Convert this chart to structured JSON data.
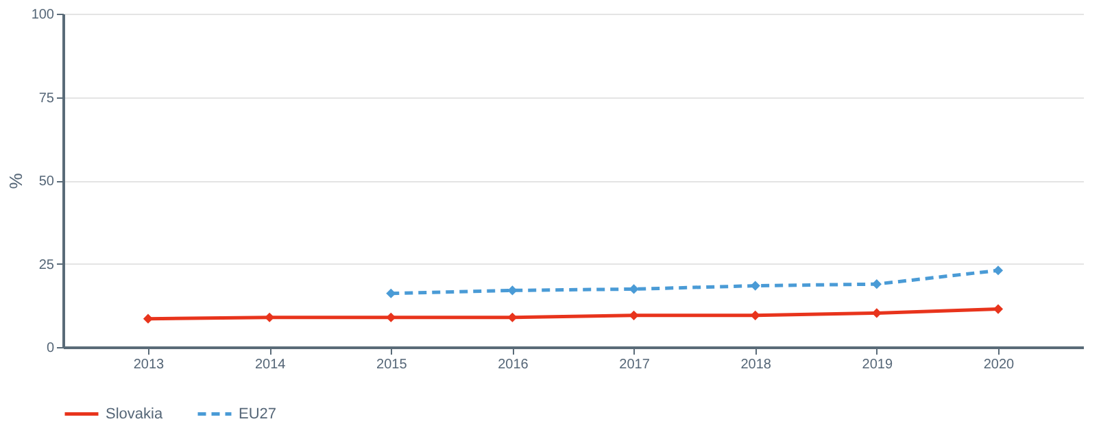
{
  "chart_data": {
    "type": "line",
    "ylabel": "%",
    "categories": [
      "2013",
      "2014",
      "2015",
      "2016",
      "2017",
      "2018",
      "2019",
      "2020"
    ],
    "series": [
      {
        "name": "Slovakia",
        "color": "#e8341c",
        "line_style": "solid",
        "values": [
          8.5,
          8.9,
          8.9,
          8.9,
          9.5,
          9.5,
          10.2,
          11.4
        ]
      },
      {
        "name": "EU27",
        "color": "#4a9bd6",
        "line_style": "dashed",
        "values": [
          null,
          null,
          16.1,
          17.0,
          17.4,
          18.4,
          18.9,
          23.0
        ]
      }
    ],
    "ylim": [
      0,
      100
    ],
    "yticks": [
      0,
      25,
      50,
      75,
      100
    ],
    "grid": "y",
    "legend": "bottom",
    "marker": "diamond"
  }
}
